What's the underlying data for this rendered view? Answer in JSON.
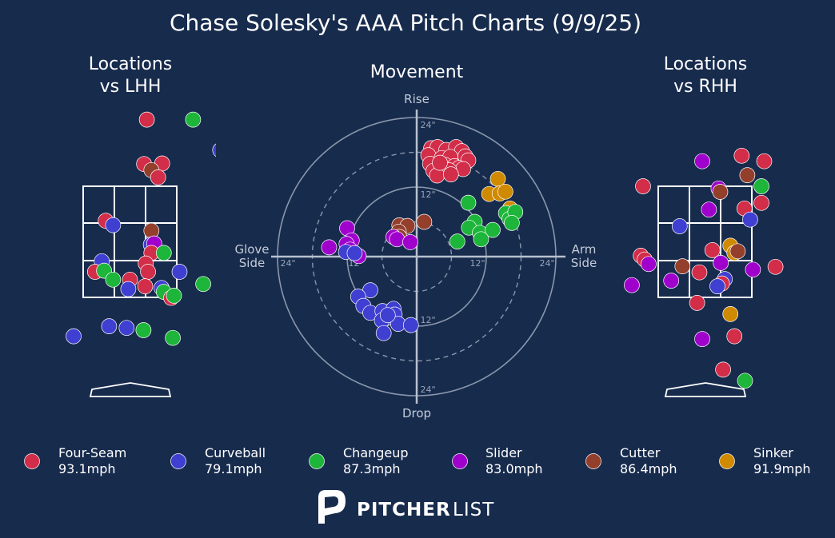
{
  "title": "Chase Solesky's AAA Pitch Charts (9/9/25)",
  "colors": {
    "background": "#172b4d",
    "Four-Seam": "#d22d49",
    "Curveball": "#3f3fd1",
    "Changeup": "#1db53a",
    "Slider": "#9f00cc",
    "Cutter": "#933f2c",
    "Sinker": "#d08a00"
  },
  "legend": [
    {
      "name": "Four-Seam",
      "speed": "93.1mph"
    },
    {
      "name": "Curveball",
      "speed": "79.1mph"
    },
    {
      "name": "Changeup",
      "speed": "87.3mph"
    },
    {
      "name": "Slider",
      "speed": "83.0mph"
    },
    {
      "name": "Cutter",
      "speed": "86.4mph"
    },
    {
      "name": "Sinker",
      "speed": "91.9mph"
    }
  ],
  "brand": {
    "bold": "PITCHER",
    "light": "LIST"
  },
  "chart_data": [
    {
      "type": "scatter",
      "panel": "locations-lhh",
      "title_lines": [
        "Locations",
        "vs LHH"
      ],
      "xlim": [
        -2.1,
        2.1
      ],
      "ylim": [
        -1.1,
        5.2
      ],
      "strike_zone": {
        "x": [
          -0.83,
          0.83
        ],
        "z": [
          1.5,
          3.5
        ]
      },
      "points": [
        {
          "pitch": "Four-Seam",
          "x": 0.3,
          "z": 4.7
        },
        {
          "pitch": "Changeup",
          "x": 1.12,
          "z": 4.7
        },
        {
          "pitch": "Curveball",
          "x": 1.6,
          "z": 4.15
        },
        {
          "pitch": "Four-Seam",
          "x": 0.25,
          "z": 3.9
        },
        {
          "pitch": "Four-Seam",
          "x": 0.57,
          "z": 3.91
        },
        {
          "pitch": "Cutter",
          "x": 0.38,
          "z": 3.79
        },
        {
          "pitch": "Four-Seam",
          "x": 0.5,
          "z": 3.66
        },
        {
          "pitch": "Four-Seam",
          "x": -0.43,
          "z": 2.88
        },
        {
          "pitch": "Curveball",
          "x": -0.3,
          "z": 2.8
        },
        {
          "pitch": "Cutter",
          "x": 0.38,
          "z": 2.7
        },
        {
          "pitch": "Curveball",
          "x": 0.37,
          "z": 2.45
        },
        {
          "pitch": "Slider",
          "x": 0.43,
          "z": 2.47
        },
        {
          "pitch": "Four-Seam",
          "x": 0.38,
          "z": 2.3
        },
        {
          "pitch": "Changeup",
          "x": 0.6,
          "z": 2.3
        },
        {
          "pitch": "Curveball",
          "x": -0.5,
          "z": 2.15
        },
        {
          "pitch": "Four-Seam",
          "x": 0.28,
          "z": 2.11
        },
        {
          "pitch": "Four-Seam",
          "x": -0.62,
          "z": 1.96
        },
        {
          "pitch": "Changeup",
          "x": -0.46,
          "z": 1.98
        },
        {
          "pitch": "Curveball",
          "x": 0.88,
          "z": 1.96
        },
        {
          "pitch": "Four-Seam",
          "x": 0.32,
          "z": 1.96
        },
        {
          "pitch": "Changeup",
          "x": -0.3,
          "z": 1.82
        },
        {
          "pitch": "Four-Seam",
          "x": 0.0,
          "z": 1.82
        },
        {
          "pitch": "Changeup",
          "x": 1.3,
          "z": 1.74
        },
        {
          "pitch": "Four-Seam",
          "x": 0.27,
          "z": 1.7
        },
        {
          "pitch": "Curveball",
          "x": -0.03,
          "z": 1.65
        },
        {
          "pitch": "Curveball",
          "x": 0.56,
          "z": 1.67
        },
        {
          "pitch": "Changeup",
          "x": 0.6,
          "z": 1.6
        },
        {
          "pitch": "Four-Seam",
          "x": 0.73,
          "z": 1.49
        },
        {
          "pitch": "Changeup",
          "x": 0.78,
          "z": 1.53
        },
        {
          "pitch": "Curveball",
          "x": -0.37,
          "z": 0.98
        },
        {
          "pitch": "Curveball",
          "x": -0.06,
          "z": 0.95
        },
        {
          "pitch": "Changeup",
          "x": 0.24,
          "z": 0.91
        },
        {
          "pitch": "Curveball",
          "x": -1.0,
          "z": 0.8
        },
        {
          "pitch": "Changeup",
          "x": 0.76,
          "z": 0.77
        },
        {
          "pitch": "Curveball",
          "x": 0.15,
          "z": -0.77
        }
      ]
    },
    {
      "type": "scatter",
      "panel": "movement",
      "title": "Movement",
      "axis_labels": {
        "top": "Rise",
        "bottom": "Drop",
        "left_lines": [
          "Glove",
          "Side"
        ],
        "right_lines": [
          "Arm",
          "Side"
        ]
      },
      "units": "inches",
      "rings": [
        6,
        12,
        18,
        24
      ],
      "ring_labels": [
        "12\"",
        "24\""
      ],
      "points": [
        {
          "pitch": "Four-Seam",
          "x": 2.5,
          "y": 18.7
        },
        {
          "pitch": "Four-Seam",
          "x": 3.6,
          "y": 18.9
        },
        {
          "pitch": "Four-Seam",
          "x": 5.1,
          "y": 18.4
        },
        {
          "pitch": "Four-Seam",
          "x": 6.8,
          "y": 18.9
        },
        {
          "pitch": "Four-Seam",
          "x": 7.8,
          "y": 18.2
        },
        {
          "pitch": "Four-Seam",
          "x": 8.4,
          "y": 17.3
        },
        {
          "pitch": "Four-Seam",
          "x": 2.0,
          "y": 17.5
        },
        {
          "pitch": "Four-Seam",
          "x": 4.3,
          "y": 17.0
        },
        {
          "pitch": "Four-Seam",
          "x": 5.8,
          "y": 17.2
        },
        {
          "pitch": "Four-Seam",
          "x": 8.9,
          "y": 16.6
        },
        {
          "pitch": "Four-Seam",
          "x": 2.3,
          "y": 16.0
        },
        {
          "pitch": "Four-Seam",
          "x": 4.9,
          "y": 15.8
        },
        {
          "pitch": "Four-Seam",
          "x": 6.5,
          "y": 15.6
        },
        {
          "pitch": "Four-Seam",
          "x": 7.3,
          "y": 15.3
        },
        {
          "pitch": "Four-Seam",
          "x": 8.0,
          "y": 15.1
        },
        {
          "pitch": "Four-Seam",
          "x": 2.9,
          "y": 14.8
        },
        {
          "pitch": "Four-Seam",
          "x": 5.6,
          "y": 14.9
        },
        {
          "pitch": "Four-Seam",
          "x": 3.5,
          "y": 14.0
        },
        {
          "pitch": "Four-Seam",
          "x": 5.9,
          "y": 14.2
        },
        {
          "pitch": "Four-Seam",
          "x": 4.0,
          "y": 16.2
        },
        {
          "pitch": "Sinker",
          "x": 14.0,
          "y": 13.4
        },
        {
          "pitch": "Sinker",
          "x": 12.5,
          "y": 10.8
        },
        {
          "pitch": "Sinker",
          "x": 14.3,
          "y": 10.9
        },
        {
          "pitch": "Sinker",
          "x": 15.3,
          "y": 11.2
        },
        {
          "pitch": "Sinker",
          "x": 16.1,
          "y": 8.3
        },
        {
          "pitch": "Changeup",
          "x": 8.9,
          "y": 9.3
        },
        {
          "pitch": "Changeup",
          "x": 15.4,
          "y": 7.5
        },
        {
          "pitch": "Changeup",
          "x": 16.0,
          "y": 6.5
        },
        {
          "pitch": "Changeup",
          "x": 17.0,
          "y": 7.7
        },
        {
          "pitch": "Changeup",
          "x": 16.4,
          "y": 5.8
        },
        {
          "pitch": "Changeup",
          "x": 10.0,
          "y": 6.0
        },
        {
          "pitch": "Changeup",
          "x": 9.0,
          "y": 5.0
        },
        {
          "pitch": "Changeup",
          "x": 10.9,
          "y": 4.1
        },
        {
          "pitch": "Changeup",
          "x": 13.1,
          "y": 4.6
        },
        {
          "pitch": "Changeup",
          "x": 7.0,
          "y": 2.6
        },
        {
          "pitch": "Changeup",
          "x": 11.1,
          "y": 3.0
        },
        {
          "pitch": "Cutter",
          "x": -3.0,
          "y": 5.4
        },
        {
          "pitch": "Cutter",
          "x": -1.6,
          "y": 5.3
        },
        {
          "pitch": "Cutter",
          "x": -3.1,
          "y": 4.3
        },
        {
          "pitch": "Cutter",
          "x": 1.3,
          "y": 6.0
        },
        {
          "pitch": "Cutter",
          "x": -3.0,
          "y": 3.4
        },
        {
          "pitch": "Slider",
          "x": -4.0,
          "y": 3.4
        },
        {
          "pitch": "Slider",
          "x": -3.4,
          "y": 3.0
        },
        {
          "pitch": "Slider",
          "x": -1.1,
          "y": 2.5
        },
        {
          "pitch": "Slider",
          "x": -12.0,
          "y": 4.9
        },
        {
          "pitch": "Slider",
          "x": -11.2,
          "y": 2.8
        },
        {
          "pitch": "Slider",
          "x": -12.1,
          "y": 2.2
        },
        {
          "pitch": "Slider",
          "x": -15.1,
          "y": 1.6
        },
        {
          "pitch": "Slider",
          "x": -11.5,
          "y": 1.2
        },
        {
          "pitch": "Slider",
          "x": -10.0,
          "y": 0.1
        },
        {
          "pitch": "Curveball",
          "x": -12.2,
          "y": 0.8
        },
        {
          "pitch": "Curveball",
          "x": -10.7,
          "y": 0.6
        },
        {
          "pitch": "Curveball",
          "x": -8.0,
          "y": -5.8
        },
        {
          "pitch": "Curveball",
          "x": -10.1,
          "y": -6.9
        },
        {
          "pitch": "Curveball",
          "x": -9.2,
          "y": -8.5
        },
        {
          "pitch": "Curveball",
          "x": -8.0,
          "y": -9.7
        },
        {
          "pitch": "Curveball",
          "x": -5.9,
          "y": -9.4
        },
        {
          "pitch": "Curveball",
          "x": -4.0,
          "y": -9.0
        },
        {
          "pitch": "Curveball",
          "x": -3.8,
          "y": -10.0
        },
        {
          "pitch": "Curveball",
          "x": -5.2,
          "y": -10.6
        },
        {
          "pitch": "Curveball",
          "x": -6.0,
          "y": -11.0
        },
        {
          "pitch": "Curveball",
          "x": -3.2,
          "y": -11.6
        },
        {
          "pitch": "Curveball",
          "x": -1.0,
          "y": -11.8
        },
        {
          "pitch": "Curveball",
          "x": -5.7,
          "y": -13.2
        },
        {
          "pitch": "Curveball",
          "x": -5.0,
          "y": -10.1
        }
      ]
    },
    {
      "type": "scatter",
      "panel": "locations-rhh",
      "title_lines": [
        "Locations",
        "vs RHH"
      ],
      "xlim": [
        -2.1,
        2.1
      ],
      "ylim": [
        -1.1,
        5.2
      ],
      "strike_zone": {
        "x": [
          -0.83,
          0.83
        ],
        "z": [
          1.5,
          3.5
        ]
      },
      "points": [
        {
          "pitch": "Four-Seam",
          "x": 0.65,
          "z": 4.05
        },
        {
          "pitch": "Four-Seam",
          "x": 1.05,
          "z": 3.95
        },
        {
          "pitch": "Slider",
          "x": -0.05,
          "z": 3.95
        },
        {
          "pitch": "Cutter",
          "x": 0.75,
          "z": 3.7
        },
        {
          "pitch": "Four-Seam",
          "x": -1.1,
          "z": 3.5
        },
        {
          "pitch": "Slider",
          "x": 0.24,
          "z": 3.46
        },
        {
          "pitch": "Cutter",
          "x": 0.27,
          "z": 3.4
        },
        {
          "pitch": "Changeup",
          "x": 1.0,
          "z": 3.5
        },
        {
          "pitch": "Four-Seam",
          "x": 1.0,
          "z": 3.2
        },
        {
          "pitch": "Slider",
          "x": 0.07,
          "z": 3.08
        },
        {
          "pitch": "Four-Seam",
          "x": 0.7,
          "z": 3.1
        },
        {
          "pitch": "Curveball",
          "x": 0.8,
          "z": 2.9
        },
        {
          "pitch": "Curveball",
          "x": -0.45,
          "z": 2.78
        },
        {
          "pitch": "Four-Seam",
          "x": 0.13,
          "z": 2.35
        },
        {
          "pitch": "Sinker",
          "x": 0.45,
          "z": 2.43
        },
        {
          "pitch": "Sinker",
          "x": 0.52,
          "z": 2.3
        },
        {
          "pitch": "Cutter",
          "x": 0.58,
          "z": 2.33
        },
        {
          "pitch": "Four-Seam",
          "x": -1.14,
          "z": 2.25
        },
        {
          "pitch": "Four-Seam",
          "x": -1.07,
          "z": 2.18
        },
        {
          "pitch": "Slider",
          "x": -1.0,
          "z": 2.1
        },
        {
          "pitch": "Cutter",
          "x": -0.4,
          "z": 2.06
        },
        {
          "pitch": "Four-Seam",
          "x": -0.1,
          "z": 1.95
        },
        {
          "pitch": "Slider",
          "x": 0.28,
          "z": 2.12
        },
        {
          "pitch": "Slider",
          "x": 0.85,
          "z": 2.0
        },
        {
          "pitch": "Four-Seam",
          "x": 1.25,
          "z": 2.05
        },
        {
          "pitch": "Slider",
          "x": -0.6,
          "z": 1.8
        },
        {
          "pitch": "Curveball",
          "x": 0.35,
          "z": 1.83
        },
        {
          "pitch": "Four-Seam",
          "x": 0.3,
          "z": 1.75
        },
        {
          "pitch": "Curveball",
          "x": 0.22,
          "z": 1.7
        },
        {
          "pitch": "Slider",
          "x": -1.3,
          "z": 1.72
        },
        {
          "pitch": "Four-Seam",
          "x": -0.14,
          "z": 1.4
        },
        {
          "pitch": "Sinker",
          "x": 0.45,
          "z": 1.2
        },
        {
          "pitch": "Slider",
          "x": -0.05,
          "z": 0.75
        },
        {
          "pitch": "Four-Seam",
          "x": 0.52,
          "z": 0.8
        },
        {
          "pitch": "Four-Seam",
          "x": 0.32,
          "z": 0.2
        },
        {
          "pitch": "Changeup",
          "x": 0.71,
          "z": 0.0
        }
      ]
    }
  ]
}
